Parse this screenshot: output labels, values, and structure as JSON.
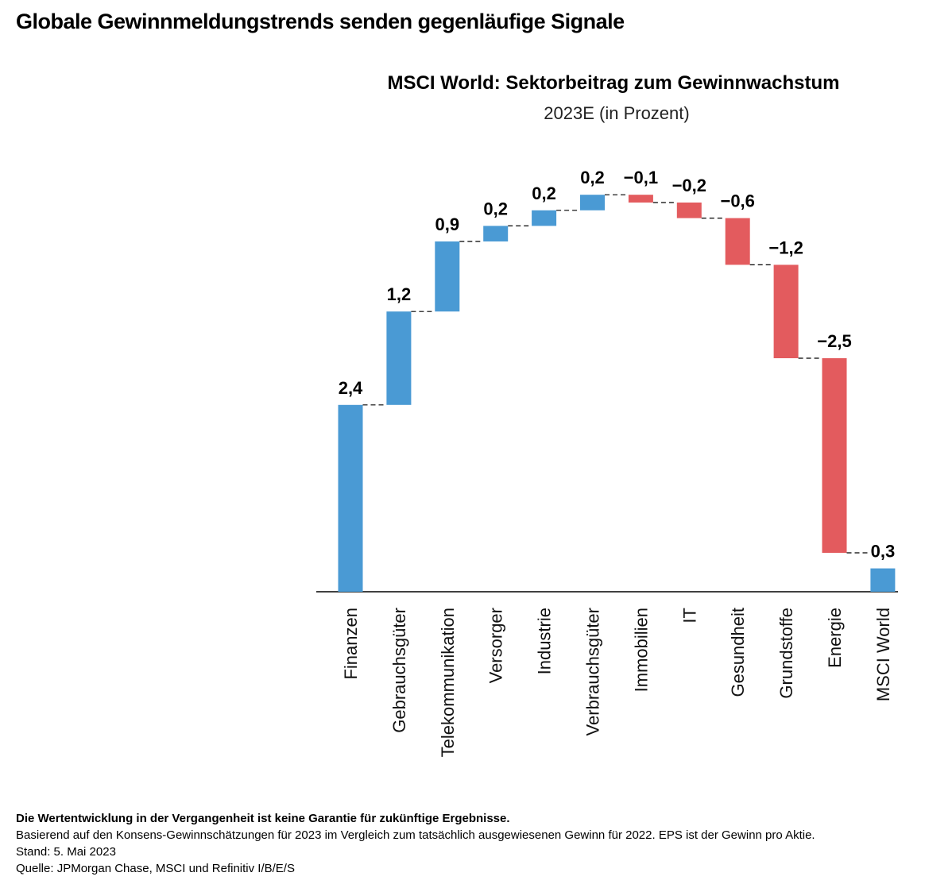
{
  "heading": "Globale Gewinnmeldungstrends senden gegenläufige Signale",
  "chart_data": {
    "type": "waterfall",
    "title": "MSCI World: Sektorbeitrag zum Gewinnwachstum",
    "subtitle": "2023E (in Prozent)",
    "categories": [
      "Finanzen",
      "Gebrauchsgüter",
      "Telekommunikation",
      "Versorger",
      "Industrie",
      "Verbrauchsgüter",
      "Immobilien",
      "IT",
      "Gesundheit",
      "Grundstoffe",
      "Energie",
      "MSCI World"
    ],
    "values": [
      2.4,
      1.2,
      0.9,
      0.2,
      0.2,
      0.2,
      -0.1,
      -0.2,
      -0.6,
      -1.2,
      -2.5,
      0.3
    ],
    "value_labels": [
      "2,4",
      "1,2",
      "0,9",
      "0,2",
      "0,2",
      "0,2",
      "−0,1",
      "−0,2",
      "−0,6",
      "−1,2",
      "−2,5",
      "0,3"
    ],
    "positive_color": "#4a9ad4",
    "negative_color": "#e35b5e"
  },
  "footnotes": [
    "Die Wertentwicklung in der Vergangenheit ist keine Garantie für zukünftige Ergebnisse.",
    "Basierend auf den Konsens-Gewinnschätzungen für 2023 im Vergleich zum tatsächlich ausgewiesenen Gewinn für 2022. EPS ist der Gewinn pro Aktie.",
    "Stand: 5. Mai 2023",
    "Quelle: JPMorgan Chase, MSCI und Refinitiv I/B/E/S"
  ]
}
